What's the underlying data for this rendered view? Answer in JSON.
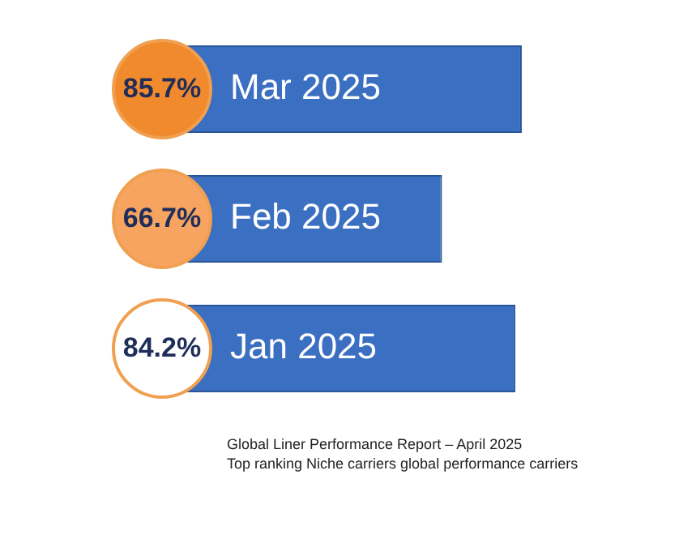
{
  "chart_data": {
    "type": "bar",
    "orientation": "horizontal",
    "categories": [
      "Mar 2025",
      "Feb 2025",
      "Jan 2025"
    ],
    "values": [
      85.7,
      66.7,
      84.2
    ],
    "value_labels": [
      "85.7%",
      "66.7%",
      "84.2%"
    ],
    "color": "#3b6fc1",
    "legend": false,
    "annotations": [
      "Global Liner Performance Report – April 2025",
      "Top ranking Niche carriers global performance carriers"
    ]
  }
}
